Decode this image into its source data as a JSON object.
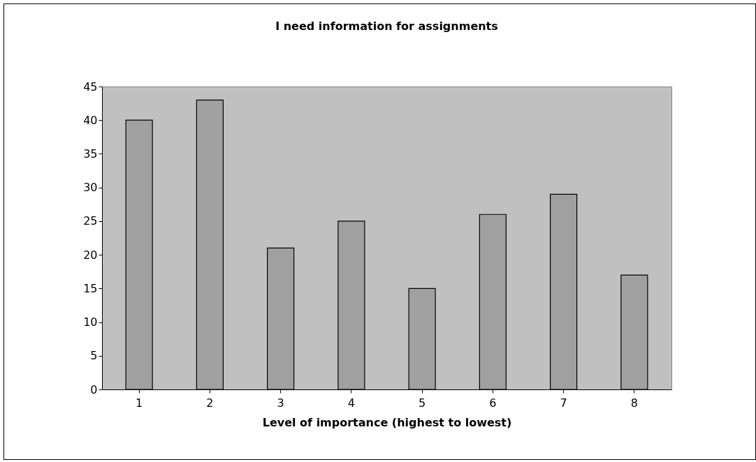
{
  "chart_data": {
    "type": "bar",
    "title": "I need information for assignments",
    "xlabel": "Level of importance (highest to lowest)",
    "categories": [
      "1",
      "2",
      "3",
      "4",
      "5",
      "6",
      "7",
      "8"
    ],
    "values": [
      40,
      43,
      21,
      25,
      15,
      26,
      29,
      17
    ],
    "color": "#a0a0a0",
    "ylim": [
      0,
      45
    ],
    "yticks": [
      0,
      5,
      10,
      15,
      20,
      25,
      30,
      35,
      40,
      45
    ],
    "grid": false
  }
}
